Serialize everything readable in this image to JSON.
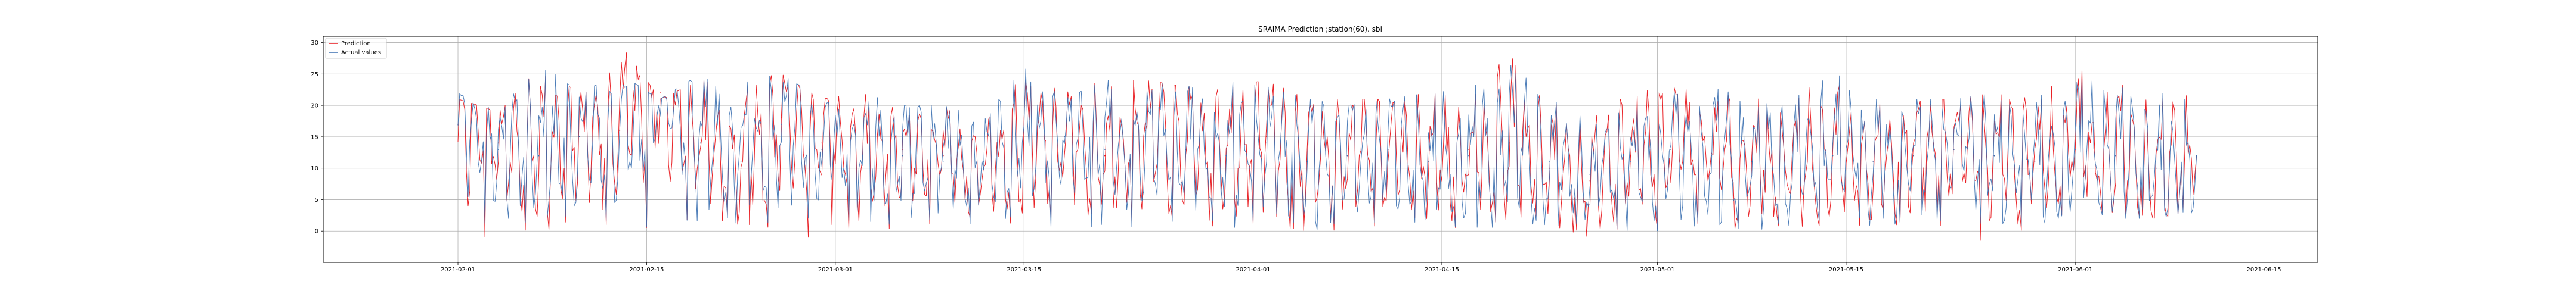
{
  "chart_data": {
    "type": "line",
    "title": "SRAIMA Prediction ;station(60), sbi",
    "xlabel": "",
    "ylabel": "",
    "x_range": [
      "2021-01-22",
      "2021-06-19"
    ],
    "x_ticks": [
      "2021-02-01",
      "2021-02-15",
      "2021-03-01",
      "2021-03-15",
      "2021-04-01",
      "2021-04-15",
      "2021-05-01",
      "2021-05-15",
      "2021-06-01",
      "2021-06-15"
    ],
    "ylim": [
      -5,
      31
    ],
    "y_ticks": [
      0,
      5,
      10,
      15,
      20,
      25,
      30
    ],
    "grid": true,
    "legend_position": "top-left",
    "x": [
      "2021-02-01",
      "2021-02-04",
      "2021-02-07",
      "2021-02-10",
      "2021-02-13",
      "2021-02-16",
      "2021-02-19",
      "2021-02-22",
      "2021-02-25",
      "2021-02-28",
      "2021-03-03",
      "2021-03-06",
      "2021-03-09",
      "2021-03-12",
      "2021-03-15",
      "2021-03-18",
      "2021-03-21",
      "2021-03-24",
      "2021-03-27",
      "2021-03-30",
      "2021-04-02",
      "2021-04-05",
      "2021-04-08",
      "2021-04-11",
      "2021-04-14",
      "2021-04-17",
      "2021-04-20",
      "2021-04-23",
      "2021-04-26",
      "2021-04-29",
      "2021-05-02",
      "2021-05-05",
      "2021-05-08",
      "2021-05-11",
      "2021-05-14",
      "2021-05-17",
      "2021-05-20",
      "2021-05-23",
      "2021-05-26",
      "2021-05-29",
      "2021-06-01",
      "2021-06-04",
      "2021-06-07",
      "2021-06-10"
    ],
    "series": [
      {
        "name": "Prediction",
        "color": "#e8161b",
        "values": [
          17,
          14,
          12,
          15,
          16,
          22,
          14,
          10,
          18,
          14,
          12,
          13,
          12,
          10,
          14,
          15,
          12,
          16,
          13,
          12,
          15,
          11,
          12,
          13,
          11,
          13,
          14,
          10,
          8,
          12,
          13,
          12,
          11,
          10,
          12,
          11,
          12,
          13,
          12,
          11,
          14,
          12,
          10,
          12
        ],
        "min": [
          -3,
          -1,
          0,
          1,
          0,
          -1,
          2,
          1,
          0,
          -2,
          1,
          0,
          1,
          1,
          0,
          1,
          2,
          0,
          1,
          0,
          1,
          -2,
          0,
          1,
          1,
          0,
          2,
          1,
          -1,
          0,
          -1,
          1,
          0,
          1,
          0,
          1,
          1,
          0,
          -3,
          1,
          2,
          3,
          2,
          3
        ],
        "max": [
          21,
          19,
          26,
          22,
          30,
          21,
          24,
          24,
          25,
          21,
          22,
          19,
          20,
          17,
          25,
          22,
          24,
          24,
          23,
          23,
          24,
          21,
          21,
          21,
          22,
          22,
          28,
          21,
          18,
          22,
          23,
          22,
          21,
          22,
          24,
          21,
          21,
          21,
          22,
          21,
          26,
          24,
          22,
          22
        ]
      },
      {
        "name": "Actual values",
        "color": "#3a6fb0",
        "values": [
          17,
          13,
          12,
          15,
          15,
          21,
          14,
          11,
          17,
          13,
          12,
          12,
          11,
          11,
          14,
          15,
          13,
          15,
          13,
          12,
          14,
          11,
          12,
          13,
          11,
          12,
          14,
          11,
          9,
          11,
          13,
          12,
          11,
          10,
          12,
          11,
          12,
          13,
          12,
          11,
          13,
          12,
          10,
          12
        ],
        "min": [
          1,
          0,
          1,
          1,
          1,
          0,
          1,
          1,
          0,
          1,
          0,
          1,
          0,
          1,
          1,
          0,
          1,
          0,
          1,
          0,
          1,
          0,
          1,
          0,
          1,
          0,
          1,
          0,
          1,
          0,
          0,
          1,
          0,
          1,
          0,
          1,
          0,
          1,
          0,
          1,
          2,
          2,
          2,
          3
        ],
        "max": [
          22,
          19,
          27,
          22,
          25,
          21,
          25,
          24,
          25,
          21,
          22,
          20,
          20,
          18,
          26,
          21,
          24,
          24,
          23,
          24,
          23,
          21,
          20,
          21,
          22,
          23,
          27,
          21,
          18,
          21,
          22,
          23,
          21,
          22,
          26,
          21,
          21,
          21,
          22,
          22,
          25,
          24,
          22,
          23
        ]
      }
    ]
  }
}
